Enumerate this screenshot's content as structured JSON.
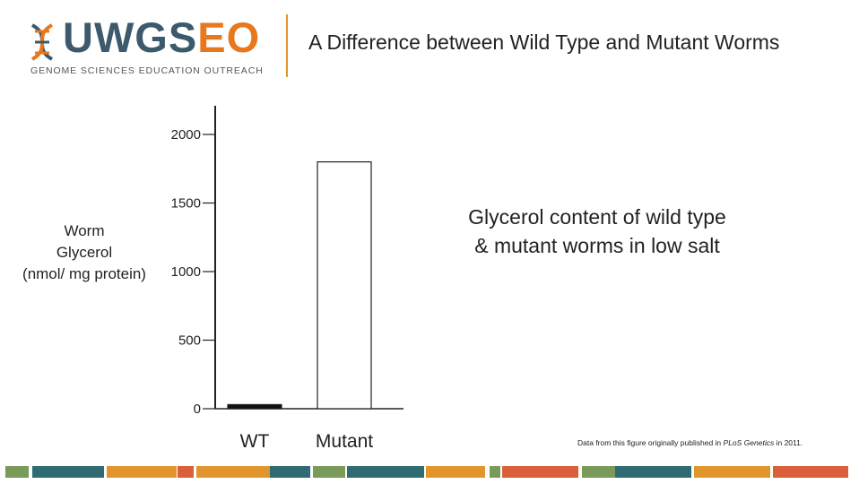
{
  "brand": {
    "name_part1": "UWGS",
    "name_part2": "EO",
    "tagline": "GENOME SCIENCES EDUCATION OUTREACH",
    "colors": {
      "navy": "#3d5a6c",
      "orange": "#e8781e"
    }
  },
  "slide": {
    "title": "A Difference between Wild Type and Mutant Worms",
    "caption_line1": "Glycerol content of wild type",
    "caption_line2": "& mutant worms in low salt",
    "source_prefix": "Data from this figure originally published in ",
    "source_journal": "PLoS Genetics",
    "source_suffix": " in 2011."
  },
  "chart_data": {
    "type": "bar",
    "categories": [
      "WT",
      "Mutant"
    ],
    "values": [
      30,
      1800
    ],
    "ylabel_lines": [
      "Worm",
      "Glycerol",
      "(nmol/ mg protein)"
    ],
    "yticks": [
      0,
      500,
      1000,
      1500,
      2000
    ],
    "ylim": [
      0,
      2000
    ],
    "grid": false,
    "legend": "none"
  },
  "footer_colors": [
    "#7a9a5a",
    "#2e6b73",
    "#e0962d",
    "#d9603b"
  ]
}
